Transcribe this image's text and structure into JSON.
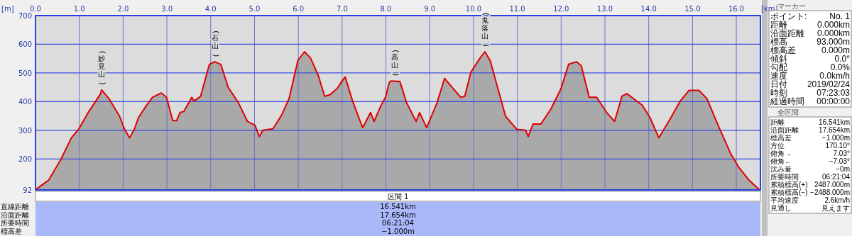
{
  "chart_data": [
    {
      "type": "area",
      "xlabel": "[km]",
      "ylabel": "[m]",
      "grid": true,
      "xlim": [
        0,
        16.55
      ],
      "ylim": [
        92,
        700
      ],
      "xticks": [
        {
          "value": 0,
          "label": "0.0"
        },
        {
          "value": 1,
          "label": "1.0"
        },
        {
          "value": 2,
          "label": "2.0"
        },
        {
          "value": 3,
          "label": "3.0"
        },
        {
          "value": 4,
          "label": "4.0"
        },
        {
          "value": 5,
          "label": "5.0"
        },
        {
          "value": 6,
          "label": "6.0"
        },
        {
          "value": 7,
          "label": "7.0"
        },
        {
          "value": 8,
          "label": "8.0"
        },
        {
          "value": 9,
          "label": "9.0"
        },
        {
          "value": 10,
          "label": "10.0"
        },
        {
          "value": 11,
          "label": "11.0"
        },
        {
          "value": 12,
          "label": "12.0"
        },
        {
          "value": 13,
          "label": "13.0"
        },
        {
          "value": 14,
          "label": "14.0"
        },
        {
          "value": 15,
          "label": "15.0"
        },
        {
          "value": 16,
          "label": "16.0"
        }
      ],
      "yticks": [
        92,
        200,
        300,
        400,
        500,
        600,
        700
      ],
      "x": [
        0,
        0.3,
        0.58,
        0.82,
        0.99,
        1.22,
        1.48,
        1.51,
        1.68,
        1.92,
        2.03,
        2.15,
        2.26,
        2.35,
        2.52,
        2.67,
        2.87,
        2.99,
        3.13,
        3.22,
        3.3,
        3.39,
        3.57,
        3.62,
        3.77,
        3.97,
        4.09,
        4.23,
        4.4,
        4.63,
        4.84,
        5.01,
        5.11,
        5.19,
        5.42,
        5.62,
        5.79,
        5.99,
        6.14,
        6.28,
        6.46,
        6.6,
        6.72,
        6.89,
        6.98,
        7.07,
        7.24,
        7.47,
        7.65,
        7.73,
        7.88,
        7.99,
        8.08,
        8.12,
        8.32,
        8.47,
        8.69,
        8.77,
        8.93,
        9.16,
        9.34,
        9.51,
        9.71,
        9.8,
        9.94,
        10.15,
        10.26,
        10.38,
        10.55,
        10.73,
        10.99,
        11.19,
        11.25,
        11.36,
        11.54,
        11.77,
        12.0,
        12.17,
        12.35,
        12.46,
        12.64,
        12.81,
        13.04,
        13.22,
        13.39,
        13.5,
        13.85,
        14.03,
        14.23,
        14.49,
        14.72,
        14.92,
        15.15,
        15.33,
        15.62,
        15.88,
        16.05,
        16.28,
        16.51
      ],
      "series": [
        {
          "color": "#e00000",
          "values": [
            93,
            126,
            199,
            274,
            305,
            366,
            426,
            441,
            410,
            349,
            305,
            274,
            305,
            344,
            384,
            415,
            430,
            415,
            335,
            333,
            362,
            366,
            415,
            402,
            419,
            530,
            539,
            530,
            450,
            397,
            331,
            318,
            278,
            300,
            305,
            353,
            411,
            543,
            574,
            552,
            490,
            419,
            424,
            446,
            468,
            486,
            402,
            309,
            362,
            331,
            384,
            415,
            468,
            472,
            470,
            397,
            331,
            362,
            309,
            393,
            481,
            450,
            415,
            419,
            503,
            552,
            574,
            543,
            450,
            349,
            303,
            300,
            278,
            322,
            322,
            375,
            446,
            530,
            539,
            525,
            415,
            415,
            362,
            331,
            419,
            428,
            388,
            344,
            274,
            340,
            402,
            439,
            439,
            410,
            305,
            216,
            172,
            128,
            95
          ]
        }
      ],
      "annotations": [
        {
          "text": "(妙見山)",
          "x": 1.51,
          "y": 441
        },
        {
          "text": "(石山)",
          "x": 4.1,
          "y": 539
        },
        {
          "text": "(高山)",
          "x": 8.2,
          "y": 472
        },
        {
          "text": "(鬼落山)",
          "x": 10.26,
          "y": 574
        }
      ]
    },
    {
      "type": "other",
      "title": "マーカー",
      "annotations": [
        "ポイント:",
        "No. 1",
        "距離",
        "0.000km",
        "沿面距離",
        "0.000km",
        "標高",
        "93.000m",
        "標高差",
        "0.000m",
        "傾斜",
        "0.0°",
        "勾配",
        "0.0%",
        "速度",
        "0.0km/h",
        "日付",
        "2019/02/24",
        "時刻",
        "07:23:03",
        "経過時間",
        "00:00:00"
      ]
    },
    {
      "type": "other",
      "title": "全区間",
      "annotations": [
        "距離",
        "16.541km",
        "沿面距離",
        "17.654km",
        "標高差",
        "−1.000m",
        "方位",
        "170.10°",
        "俯角→",
        "7.03°",
        "俯角←",
        "−7.03°",
        "沈み量",
        "−0m",
        "所要時間",
        "06:21:04",
        "累積標高(+)",
        "2487.000m",
        "累積標高(−)",
        "−2488.000m",
        "平均速度",
        "2.6km/h",
        "見通し",
        "見えます"
      ]
    },
    {
      "type": "other",
      "title": "区間 1",
      "annotations": [
        "直線距離",
        "16.541km",
        "沿面距離",
        "17.654km",
        "所要時間",
        "06:21:04",
        "標高差",
        "−1.000m"
      ]
    }
  ]
}
